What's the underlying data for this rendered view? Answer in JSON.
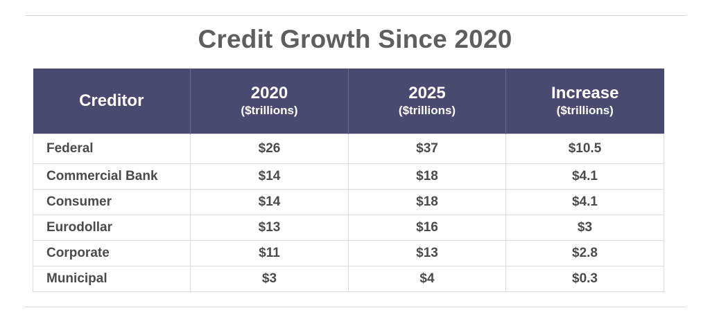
{
  "chart_data": {
    "type": "table",
    "title": "Credit Growth Since 2020",
    "columns": [
      {
        "label": "Creditor",
        "sublabel": ""
      },
      {
        "label": "2020",
        "sublabel": "($trillions)"
      },
      {
        "label": "2025",
        "sublabel": "($trillions)"
      },
      {
        "label": "Increase",
        "sublabel": "($trillions)"
      }
    ],
    "rows": [
      [
        "Federal",
        "$26",
        "$37",
        "$10.5"
      ],
      [
        "Commercial Bank",
        "$14",
        "$18",
        "$4.1"
      ],
      [
        "Consumer",
        "$14",
        "$18",
        "$4.1"
      ],
      [
        "Eurodollar",
        "$13",
        "$16",
        "$3"
      ],
      [
        "Corporate",
        "$11",
        "$13",
        "$2.8"
      ],
      [
        "Municipal",
        "$3",
        "$4",
        "$0.3"
      ]
    ],
    "colors": {
      "header_bg": "#4a4a70",
      "header_text": "#ffffff",
      "title_text": "#5e5e5e",
      "cell_text": "#4a4a4a",
      "grid": "#dcdcdc"
    }
  }
}
